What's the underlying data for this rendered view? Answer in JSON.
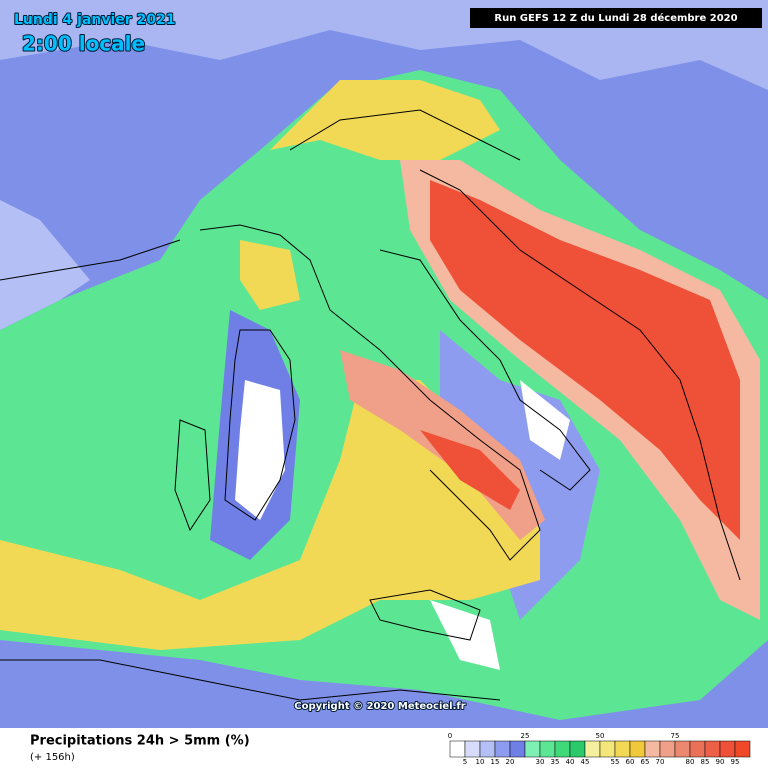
{
  "header": {
    "date": "Lundi 4 janvier 2021",
    "time": "2:00 locale",
    "run": "Run GEFS 12 Z du Lundi 28 décembre 2020"
  },
  "copyright": "Copyright © 2020 Meteociel.fr",
  "legend": {
    "title": "Precipitations 24h > 5mm (%)",
    "subtitle": "(+ 156h)",
    "step": 5,
    "top_ticks": [
      0,
      25,
      50,
      75
    ],
    "bottom_ticks": [
      5,
      10,
      15,
      20,
      30,
      35,
      40,
      45,
      55,
      60,
      65,
      70,
      80,
      85,
      90,
      95
    ],
    "colors": [
      "#ffffff",
      "#d6dcfa",
      "#b4bff5",
      "#8d9cee",
      "#6f7fe6",
      "#7ef0b4",
      "#5ce694",
      "#3fd97a",
      "#2cc96a",
      "#f5f0a0",
      "#f5e67a",
      "#f2d955",
      "#f0c83a",
      "#f5b8a0",
      "#f0a088",
      "#ec8870",
      "#ea7058",
      "#ec6048",
      "#ee5038",
      "#f04828"
    ]
  }
}
